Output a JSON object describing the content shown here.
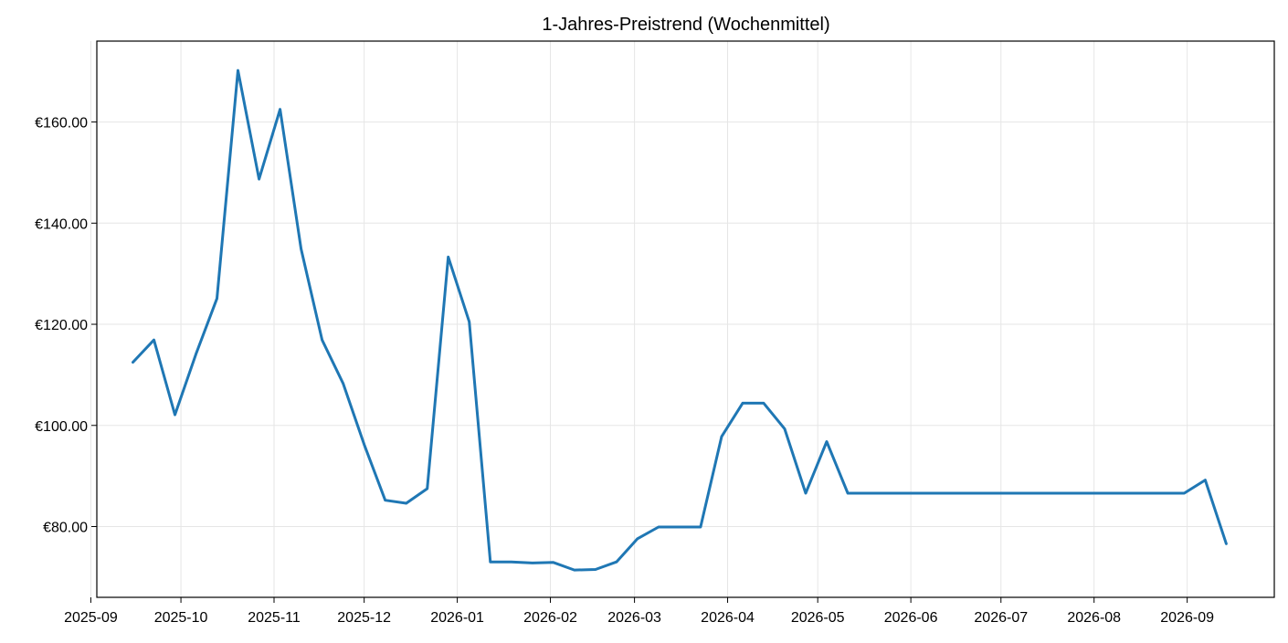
{
  "chart_data": {
    "type": "line",
    "title": "1-Jahres-Preistrend (Wochenmittel)",
    "xlabel": "",
    "ylabel": "",
    "x_type": "date",
    "xlim": [
      "2025-09-03",
      "2026-09-30"
    ],
    "ylim": [
      66,
      176
    ],
    "grid": true,
    "legend": "none",
    "color": "#1f77b4",
    "x_ticks": [
      {
        "date": "2025-09-01",
        "label": "2025-09"
      },
      {
        "date": "2025-10-01",
        "label": "2025-10"
      },
      {
        "date": "2025-11-01",
        "label": "2025-11"
      },
      {
        "date": "2025-12-01",
        "label": "2025-12"
      },
      {
        "date": "2026-01-01",
        "label": "2026-01"
      },
      {
        "date": "2026-02-01",
        "label": "2026-02"
      },
      {
        "date": "2026-03-01",
        "label": "2026-03"
      },
      {
        "date": "2026-04-01",
        "label": "2026-04"
      },
      {
        "date": "2026-05-01",
        "label": "2026-05"
      },
      {
        "date": "2026-06-01",
        "label": "2026-06"
      },
      {
        "date": "2026-07-01",
        "label": "2026-07"
      },
      {
        "date": "2026-08-01",
        "label": "2026-08"
      },
      {
        "date": "2026-09-01",
        "label": "2026-09"
      }
    ],
    "y_ticks": [
      {
        "value": 80,
        "label": "€80.00"
      },
      {
        "value": 100,
        "label": "€100.00"
      },
      {
        "value": 120,
        "label": "€120.00"
      },
      {
        "value": 140,
        "label": "€140.00"
      },
      {
        "value": 160,
        "label": "€160.00"
      }
    ],
    "series": [
      {
        "x": [
          "2025-09-15",
          "2025-09-22",
          "2025-09-29",
          "2025-10-06",
          "2025-10-13",
          "2025-10-20",
          "2025-10-27",
          "2025-11-03",
          "2025-11-10",
          "2025-11-17",
          "2025-11-24",
          "2025-12-01",
          "2025-12-08",
          "2025-12-15",
          "2025-12-22",
          "2025-12-29",
          "2026-01-05",
          "2026-01-12",
          "2026-01-19",
          "2026-01-26",
          "2026-02-02",
          "2026-02-09",
          "2026-02-16",
          "2026-02-23",
          "2026-03-02",
          "2026-03-09",
          "2026-03-16",
          "2026-03-23",
          "2026-03-30",
          "2026-04-06",
          "2026-04-13",
          "2026-04-20",
          "2026-04-27",
          "2026-05-04",
          "2026-05-11",
          "2026-05-18",
          "2026-05-25",
          "2026-06-01",
          "2026-06-08",
          "2026-06-15",
          "2026-06-22",
          "2026-06-29",
          "2026-07-06",
          "2026-07-13",
          "2026-07-20",
          "2026-07-27",
          "2026-08-03",
          "2026-08-10",
          "2026-08-17",
          "2026-08-24",
          "2026-08-31",
          "2026-09-07",
          "2026-09-14"
        ],
        "values": [
          112.5,
          116.9,
          102.1,
          114.1,
          125.1,
          170.2,
          148.7,
          162.5,
          134.9,
          116.9,
          108.3,
          96.2,
          85.2,
          84.6,
          87.5,
          133.3,
          120.5,
          73.0,
          73.0,
          72.8,
          72.9,
          71.4,
          71.5,
          73.0,
          77.6,
          79.9,
          79.9,
          79.9,
          97.8,
          104.4,
          104.4,
          99.3,
          86.6,
          96.8,
          86.6,
          86.6,
          86.6,
          86.6,
          86.6,
          86.6,
          86.6,
          86.6,
          86.6,
          86.6,
          86.6,
          86.6,
          86.6,
          86.6,
          86.6,
          86.6,
          86.6,
          89.2,
          76.6
        ]
      }
    ]
  }
}
